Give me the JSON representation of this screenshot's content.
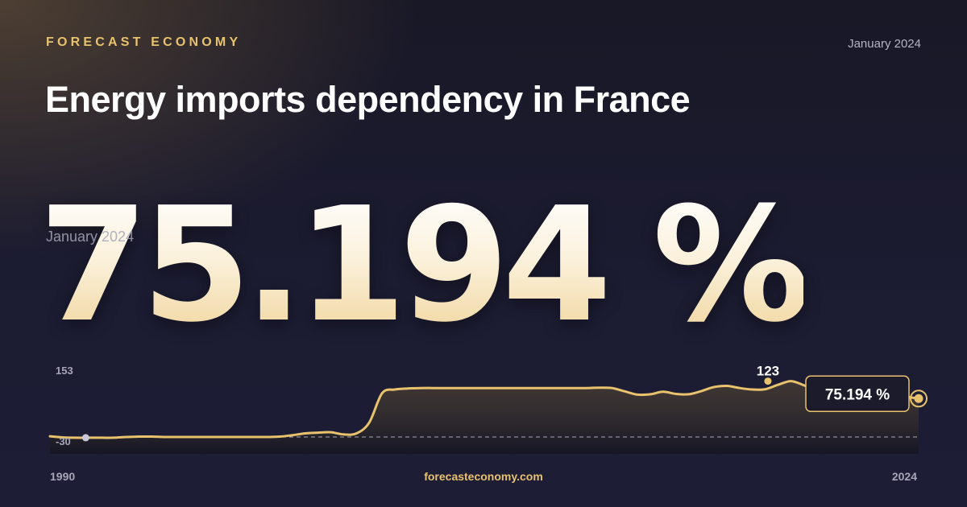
{
  "header": {
    "brand": "FORECAST ECONOMY",
    "date": "January 2024",
    "title": "Energy imports dependency in France"
  },
  "hero": {
    "value": "75.194 %",
    "date_label": "January 2024"
  },
  "footer": {
    "site": "forecasteconomy.com"
  },
  "colors": {
    "accent": "#e8c26d",
    "background": "#1b1b30",
    "muted_text": "#a7a6b8"
  },
  "chart_data": {
    "type": "area",
    "title": "",
    "xlabel": "",
    "ylabel": "",
    "x_start_label": "1990",
    "x_end_label": "2024",
    "y_max_label": "153",
    "y_min_label": "-30",
    "ylim": [
      -30,
      153
    ],
    "peak": {
      "x": 2018.1,
      "y": 123,
      "label": "123"
    },
    "last": {
      "x": 2024.0,
      "y": 75.194,
      "label": "75.194 %"
    },
    "start_marker": {
      "x": 1991.4,
      "y": -32
    },
    "x": [
      1990.0,
      1990.5,
      1991.0,
      1991.5,
      1992.0,
      1992.5,
      1993.0,
      1993.5,
      1994.0,
      1994.5,
      1995.0,
      1995.5,
      1996.0,
      1996.5,
      1997.0,
      1997.5,
      1998.0,
      1998.5,
      1999.0,
      1999.5,
      2000.0,
      2000.5,
      2001.0,
      2001.5,
      2002.0,
      2002.5,
      2003.0,
      2003.5,
      2004.0,
      2004.5,
      2005.0,
      2005.5,
      2006.0,
      2006.5,
      2007.0,
      2007.5,
      2008.0,
      2008.5,
      2009.0,
      2009.5,
      2010.0,
      2010.5,
      2011.0,
      2011.5,
      2012.0,
      2012.5,
      2013.0,
      2013.5,
      2014.0,
      2014.5,
      2015.0,
      2015.5,
      2016.0,
      2016.5,
      2017.0,
      2017.5,
      2018.0,
      2018.5,
      2019.0,
      2019.5,
      2020.0,
      2020.5,
      2021.0,
      2021.5,
      2022.0,
      2022.5,
      2023.0,
      2023.5,
      2024.0
    ],
    "values": [
      -28,
      -31,
      -32,
      -32,
      -32,
      -32,
      -30,
      -29,
      -29,
      -30,
      -30,
      -30,
      -30,
      -30,
      -30,
      -30,
      -30,
      -30,
      -29,
      -25,
      -20,
      -18,
      -17,
      -23,
      -20,
      10,
      90,
      100,
      103,
      104,
      104,
      104,
      104,
      104,
      104,
      104,
      104,
      104,
      104,
      104,
      104,
      104,
      104,
      105,
      104,
      95,
      86,
      87,
      94,
      88,
      87,
      96,
      107,
      110,
      104,
      100,
      101,
      113,
      123,
      112,
      96,
      98,
      101,
      98,
      92,
      88,
      82,
      80,
      75.194
    ]
  }
}
